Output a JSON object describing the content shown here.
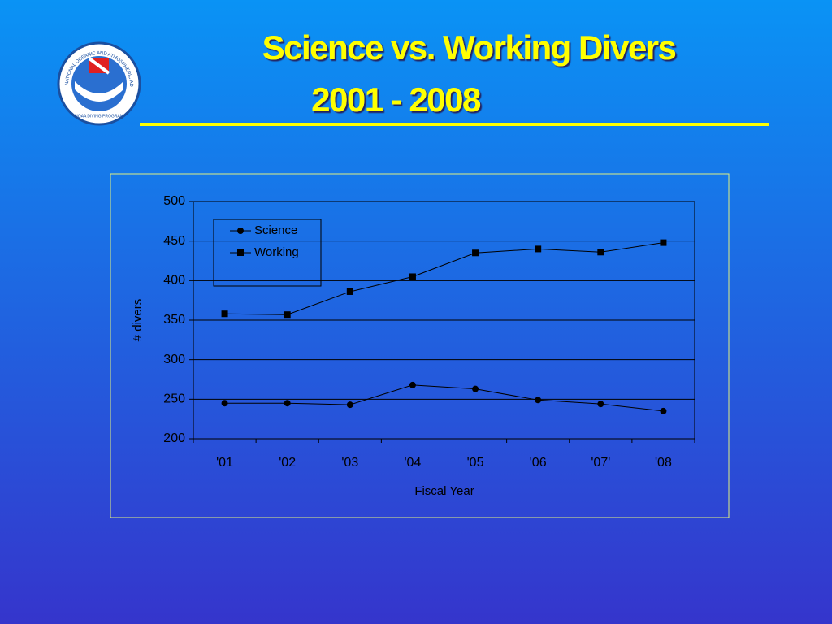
{
  "logo": {
    "text": "NATIONAL OCEANIC AND ATMOSPHERIC ADMINISTRATION",
    "subtext": "NOAA DIVING PROGRAM"
  },
  "chart_data": {
    "type": "line",
    "title": "Science vs. Working Divers",
    "subtitle": "2001 - 2008",
    "x_label": "Fiscal Year",
    "y_label": "# divers",
    "categories": [
      "'01",
      "'02",
      "'03",
      "'04",
      "'05",
      "'06",
      "'07'",
      "'08"
    ],
    "series": [
      {
        "name": "Science",
        "color": "#000000",
        "marker": "circle",
        "values": [
          245,
          245,
          243,
          268,
          263,
          249,
          244,
          235
        ]
      },
      {
        "name": "Working",
        "color": "#000000",
        "marker": "square",
        "values": [
          358,
          357,
          386,
          405,
          435,
          440,
          436,
          448
        ]
      }
    ],
    "ylim": [
      200,
      500
    ],
    "yticks": [
      200,
      250,
      300,
      350,
      400,
      450,
      500
    ],
    "grid": true,
    "legend": "upper left"
  }
}
